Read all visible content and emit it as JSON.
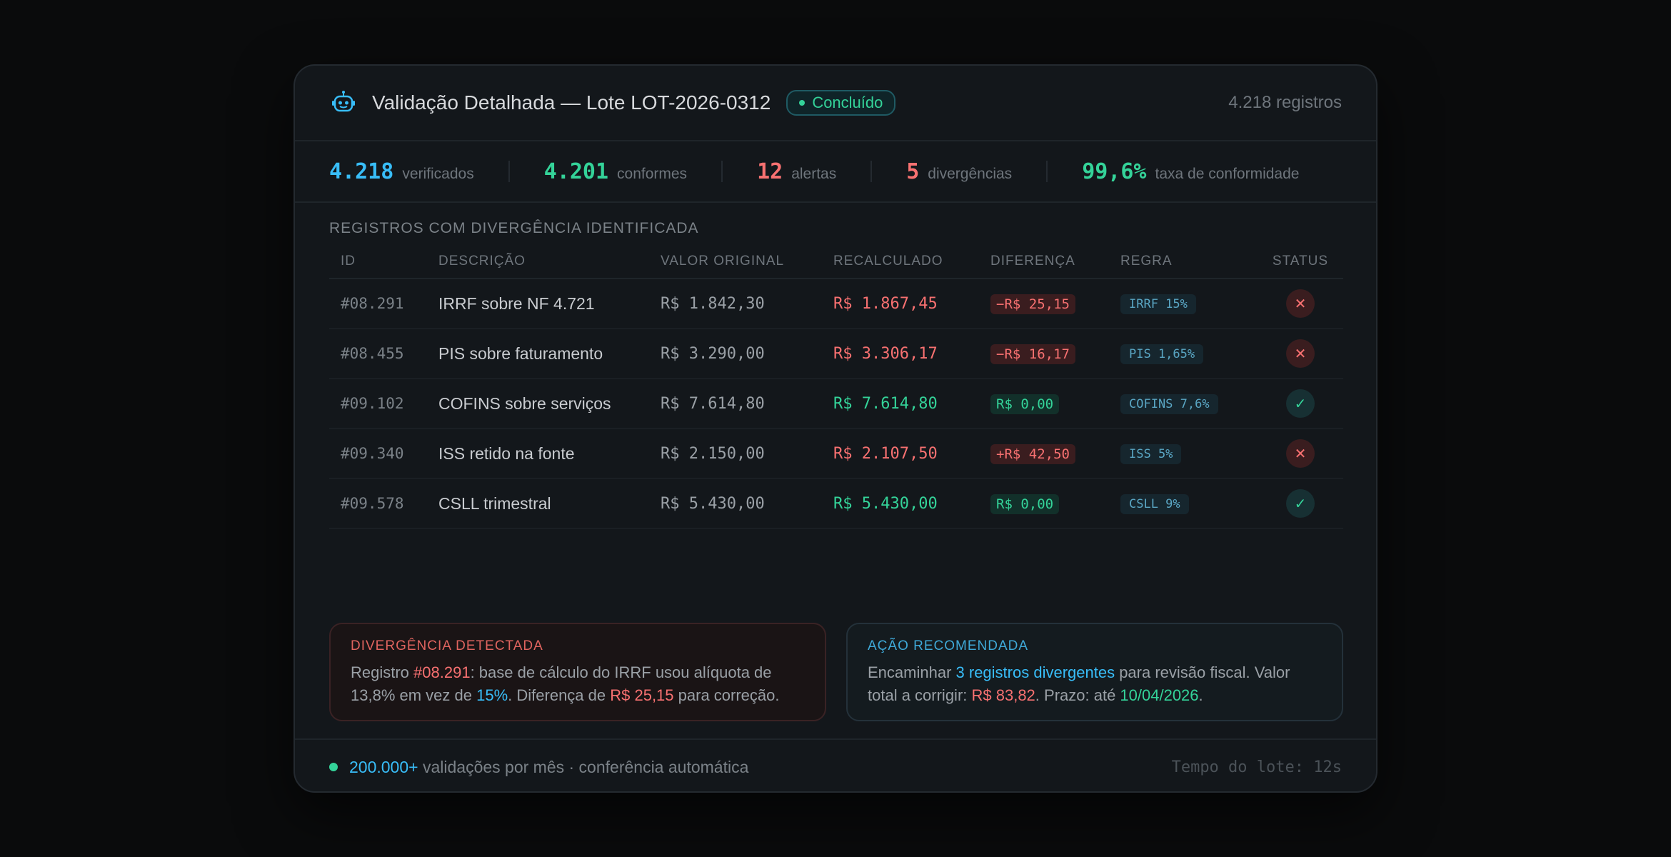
{
  "header": {
    "title": "Validação Detalhada — Lote LOT-2026-0312",
    "badge": "Concluído",
    "records": "4.218 registros",
    "icon": "robot-icon"
  },
  "stats": [
    {
      "value": "4.218",
      "label": "verificados",
      "color": "#38bdf8"
    },
    {
      "value": "4.201",
      "label": "conformes",
      "color": "#34d399"
    },
    {
      "value": "12",
      "label": "alertas",
      "color": "#f87171"
    },
    {
      "value": "5",
      "label": "divergências",
      "color": "#f87171"
    },
    {
      "value": "99,6%",
      "label": "taxa de conformidade",
      "color": "#34d399"
    }
  ],
  "section_title": "REGISTROS COM DIVERGÊNCIA IDENTIFICADA",
  "table": {
    "headers": [
      "ID",
      "DESCRIÇÃO",
      "VALOR ORIGINAL",
      "RECALCULADO",
      "DIFERENÇA",
      "REGRA",
      "STATUS"
    ],
    "rows": [
      {
        "id": "#08.291",
        "desc": "IRRF sobre NF 4.721",
        "orig": "R$ 1.842,30",
        "rec": "R$ 1.867,45",
        "diff": "−R$ 25,15",
        "rule": "IRRF 15%",
        "ok": false
      },
      {
        "id": "#08.455",
        "desc": "PIS sobre faturamento",
        "orig": "R$ 3.290,00",
        "rec": "R$ 3.306,17",
        "diff": "−R$ 16,17",
        "rule": "PIS 1,65%",
        "ok": false
      },
      {
        "id": "#09.102",
        "desc": "COFINS sobre serviços",
        "orig": "R$ 7.614,80",
        "rec": "R$ 7.614,80",
        "diff": "R$ 0,00",
        "rule": "COFINS 7,6%",
        "ok": true
      },
      {
        "id": "#09.340",
        "desc": "ISS retido na fonte",
        "orig": "R$ 2.150,00",
        "rec": "R$ 2.107,50",
        "diff": "+R$ 42,50",
        "rule": "ISS 5%",
        "ok": false
      },
      {
        "id": "#09.578",
        "desc": "CSLL trimestral",
        "orig": "R$ 5.430,00",
        "rec": "R$ 5.430,00",
        "diff": "R$ 0,00",
        "rule": "CSLL 9%",
        "ok": true
      }
    ]
  },
  "panels": {
    "divergence": {
      "title": "DIVERGÊNCIA DETECTADA",
      "t1": "Registro ",
      "id": "#08.291",
      "t2": ": base de cálculo do IRRF usou alíquota de 13,8% em vez de ",
      "rate": "15%",
      "t3": ". Diferença de ",
      "amount": "R$ 25,15",
      "t4": " para correção."
    },
    "action": {
      "title": "AÇÃO RECOMENDADA",
      "t1": "Encaminhar ",
      "link": "3 registros divergentes",
      "t2": " para revisão fiscal. Valor total a corrigir: ",
      "amount": "R$ 83,82",
      "t3": ". Prazo: até ",
      "date": "10/04/2026",
      "t4": "."
    }
  },
  "footer": {
    "highlight": "200.000+",
    "text": " validações por mês · conferência automática",
    "right": "Tempo do lote: 12s"
  }
}
